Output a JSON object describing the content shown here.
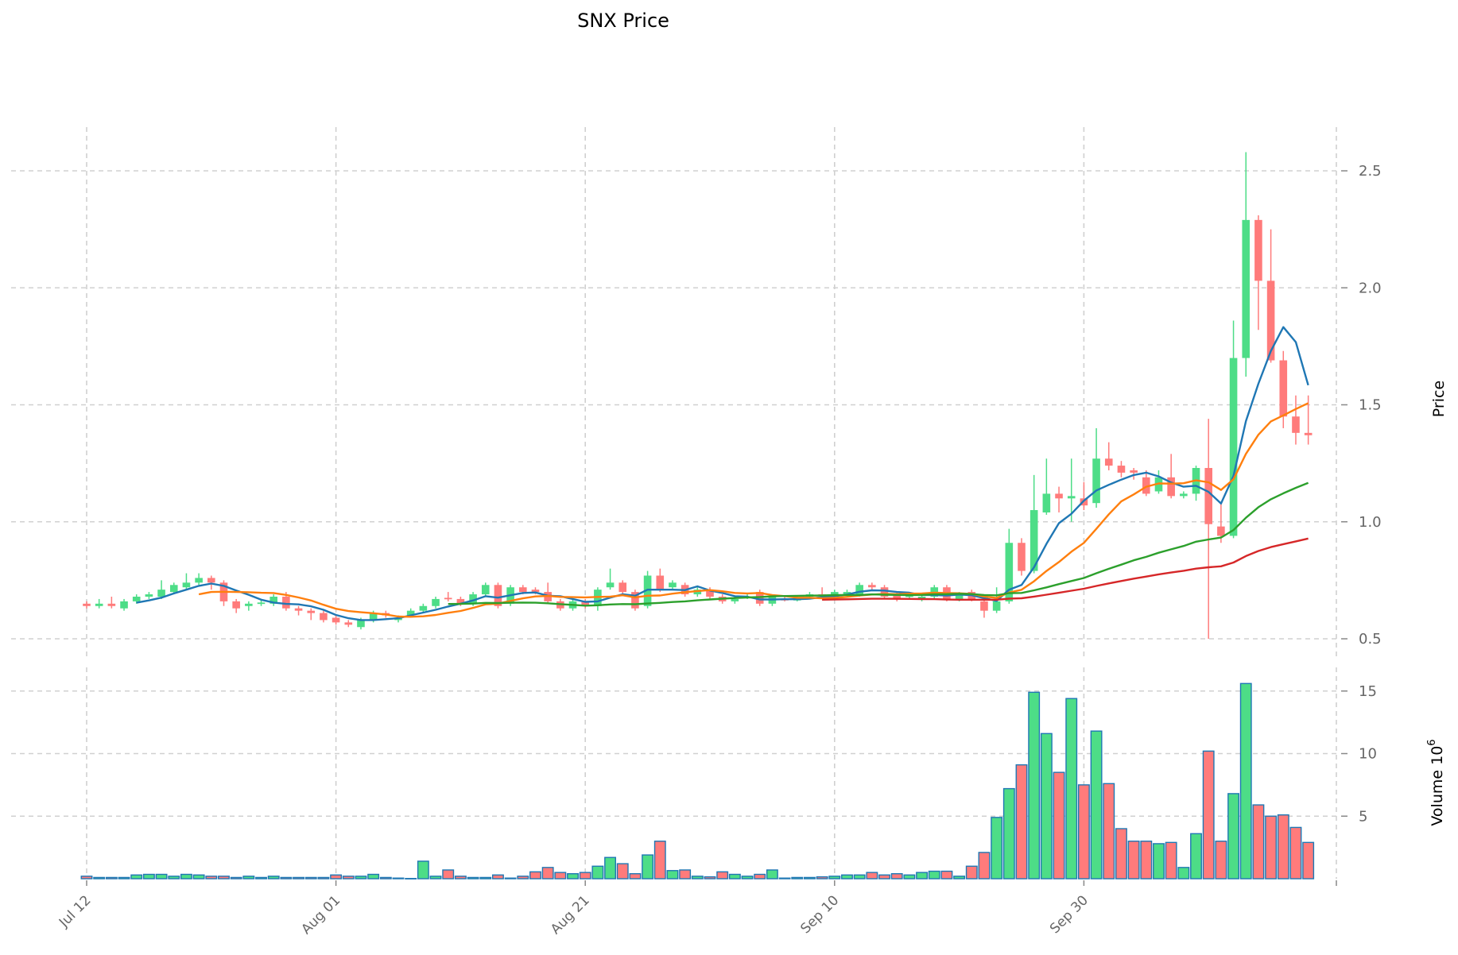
{
  "title": "SNX Price",
  "chart_data": {
    "type": "candlestick",
    "title": "SNX Price",
    "ylabel_price": "Price",
    "ylabel_volume": "Volume",
    "volume_exponent": "10",
    "volume_exponent_power": "6",
    "price_ylim": [
      0.4,
      2.7
    ],
    "price_yticks": [
      "0.5",
      "1.0",
      "1.5",
      "2.0",
      "2.5"
    ],
    "volume_ylim": [
      0,
      16
    ],
    "volume_yticks": [
      "5",
      "10",
      "15"
    ],
    "x_ticks": [
      {
        "label": "Jul 12",
        "day": 0
      },
      {
        "label": "Aug 01",
        "day": 20
      },
      {
        "label": "Aug 21",
        "day": 40
      },
      {
        "label": "Sep 10",
        "day": 60
      },
      {
        "label": "Sep 30",
        "day": 80
      }
    ],
    "x_range_days": [
      -0.5,
      100
    ],
    "grid": true,
    "colors": {
      "up": "#4ddd87",
      "down": "#ff7b7b",
      "volume_edge": "#1f77b4",
      "grid": "#d0d0d0",
      "axis_text": "#666666"
    },
    "moving_averages": [
      {
        "window": 5,
        "color": "#1f77b4"
      },
      {
        "window": 10,
        "color": "#ff7f0e"
      },
      {
        "window": 30,
        "color": "#2ca02c"
      },
      {
        "window": 60,
        "color": "#d62728"
      }
    ],
    "open": [
      0.65,
      0.64,
      0.65,
      0.63,
      0.66,
      0.68,
      0.68,
      0.7,
      0.72,
      0.74,
      0.76,
      0.74,
      0.66,
      0.64,
      0.65,
      0.65,
      0.68,
      0.63,
      0.62,
      0.61,
      0.59,
      0.57,
      0.55,
      0.58,
      0.61,
      0.58,
      0.6,
      0.62,
      0.64,
      0.675,
      0.67,
      0.65,
      0.69,
      0.73,
      0.65,
      0.72,
      0.71,
      0.7,
      0.66,
      0.63,
      0.66,
      0.64,
      0.72,
      0.74,
      0.7,
      0.64,
      0.77,
      0.72,
      0.73,
      0.69,
      0.71,
      0.68,
      0.66,
      0.675,
      0.7,
      0.65,
      0.67,
      0.665,
      0.68,
      0.69,
      0.69,
      0.69,
      0.69,
      0.73,
      0.72,
      0.69,
      0.68,
      0.67,
      0.68,
      0.72,
      0.67,
      0.7,
      0.66,
      0.62,
      0.66,
      0.91,
      0.79,
      1.04,
      1.12,
      1.1,
      1.1,
      1.08,
      1.27,
      1.24,
      1.22,
      1.19,
      1.13,
      1.19,
      1.11,
      1.12,
      1.23,
      0.98,
      0.94,
      1.7,
      2.29,
      2.03,
      1.69,
      1.45,
      1.38
    ],
    "high": [
      0.66,
      0.67,
      0.68,
      0.67,
      0.69,
      0.7,
      0.75,
      0.74,
      0.78,
      0.78,
      0.77,
      0.75,
      0.67,
      0.66,
      0.67,
      0.69,
      0.7,
      0.64,
      0.63,
      0.62,
      0.6,
      0.58,
      0.59,
      0.62,
      0.62,
      0.6,
      0.63,
      0.65,
      0.68,
      0.7,
      0.68,
      0.7,
      0.74,
      0.74,
      0.73,
      0.73,
      0.72,
      0.74,
      0.67,
      0.67,
      0.67,
      0.72,
      0.8,
      0.75,
      0.71,
      0.79,
      0.8,
      0.75,
      0.74,
      0.72,
      0.72,
      0.69,
      0.68,
      0.69,
      0.71,
      0.69,
      0.68,
      0.68,
      0.7,
      0.72,
      0.71,
      0.71,
      0.74,
      0.74,
      0.73,
      0.7,
      0.69,
      0.69,
      0.73,
      0.73,
      0.7,
      0.71,
      0.67,
      0.72,
      0.97,
      0.93,
      1.2,
      1.27,
      1.15,
      1.27,
      1.17,
      1.4,
      1.34,
      1.26,
      1.23,
      1.22,
      1.22,
      1.29,
      1.13,
      1.24,
      1.44,
      1.08,
      1.86,
      2.58,
      2.31,
      2.25,
      1.73,
      1.54,
      1.54
    ],
    "low": [
      0.63,
      0.63,
      0.63,
      0.62,
      0.65,
      0.67,
      0.67,
      0.69,
      0.71,
      0.73,
      0.71,
      0.64,
      0.61,
      0.62,
      0.64,
      0.64,
      0.62,
      0.6,
      0.58,
      0.57,
      0.56,
      0.55,
      0.54,
      0.57,
      0.59,
      0.57,
      0.59,
      0.61,
      0.63,
      0.66,
      0.64,
      0.64,
      0.68,
      0.63,
      0.64,
      0.69,
      0.69,
      0.65,
      0.62,
      0.62,
      0.63,
      0.62,
      0.71,
      0.69,
      0.62,
      0.63,
      0.7,
      0.71,
      0.68,
      0.68,
      0.67,
      0.65,
      0.65,
      0.67,
      0.64,
      0.64,
      0.66,
      0.66,
      0.67,
      0.67,
      0.68,
      0.68,
      0.68,
      0.71,
      0.67,
      0.66,
      0.67,
      0.66,
      0.67,
      0.66,
      0.66,
      0.66,
      0.59,
      0.61,
      0.65,
      0.77,
      0.78,
      1.03,
      1.04,
      1.0,
      1.05,
      1.06,
      1.22,
      1.19,
      1.18,
      1.11,
      1.12,
      1.1,
      1.1,
      1.09,
      0.5,
      0.91,
      0.93,
      1.62,
      1.82,
      1.68,
      1.4,
      1.33,
      1.33
    ],
    "close": [
      0.64,
      0.65,
      0.64,
      0.66,
      0.68,
      0.69,
      0.71,
      0.73,
      0.74,
      0.76,
      0.74,
      0.66,
      0.63,
      0.65,
      0.655,
      0.68,
      0.63,
      0.62,
      0.61,
      0.58,
      0.57,
      0.56,
      0.58,
      0.61,
      0.6,
      0.59,
      0.62,
      0.64,
      0.67,
      0.67,
      0.65,
      0.69,
      0.73,
      0.64,
      0.72,
      0.7,
      0.7,
      0.66,
      0.63,
      0.66,
      0.64,
      0.71,
      0.74,
      0.7,
      0.63,
      0.77,
      0.71,
      0.74,
      0.69,
      0.71,
      0.68,
      0.66,
      0.67,
      0.68,
      0.65,
      0.68,
      0.665,
      0.67,
      0.69,
      0.685,
      0.7,
      0.7,
      0.73,
      0.72,
      0.68,
      0.67,
      0.685,
      0.68,
      0.72,
      0.67,
      0.69,
      0.67,
      0.62,
      0.66,
      0.91,
      0.79,
      1.05,
      1.12,
      1.1,
      1.11,
      1.07,
      1.27,
      1.24,
      1.21,
      1.21,
      1.12,
      1.19,
      1.11,
      1.12,
      1.23,
      0.99,
      0.94,
      1.7,
      2.29,
      2.03,
      1.69,
      1.45,
      1.38,
      1.37
    ],
    "volume": [
      0.2,
      0.1,
      0.1,
      0.1,
      0.3,
      0.35,
      0.35,
      0.2,
      0.35,
      0.3,
      0.2,
      0.2,
      0.1,
      0.2,
      0.1,
      0.2,
      0.1,
      0.1,
      0.1,
      0.1,
      0.3,
      0.2,
      0.2,
      0.35,
      0.1,
      0.05,
      0.02,
      1.4,
      0.2,
      0.7,
      0.2,
      0.1,
      0.1,
      0.3,
      0.05,
      0.2,
      0.55,
      0.9,
      0.5,
      0.4,
      0.5,
      1.0,
      1.7,
      1.2,
      0.4,
      1.9,
      3.0,
      0.65,
      0.7,
      0.2,
      0.15,
      0.55,
      0.35,
      0.2,
      0.35,
      0.7,
      0.05,
      0.1,
      0.1,
      0.15,
      0.2,
      0.3,
      0.3,
      0.5,
      0.3,
      0.4,
      0.3,
      0.5,
      0.6,
      0.6,
      0.2,
      1.0,
      2.1,
      4.9,
      7.2,
      9.1,
      14.9,
      11.6,
      8.5,
      14.4,
      7.5,
      11.8,
      7.6,
      4.0,
      3.0,
      3.0,
      2.8,
      2.9,
      0.9,
      3.6,
      10.2,
      3.0,
      6.8,
      15.6,
      5.9,
      5.0,
      5.1,
      4.1,
      2.9
    ]
  }
}
